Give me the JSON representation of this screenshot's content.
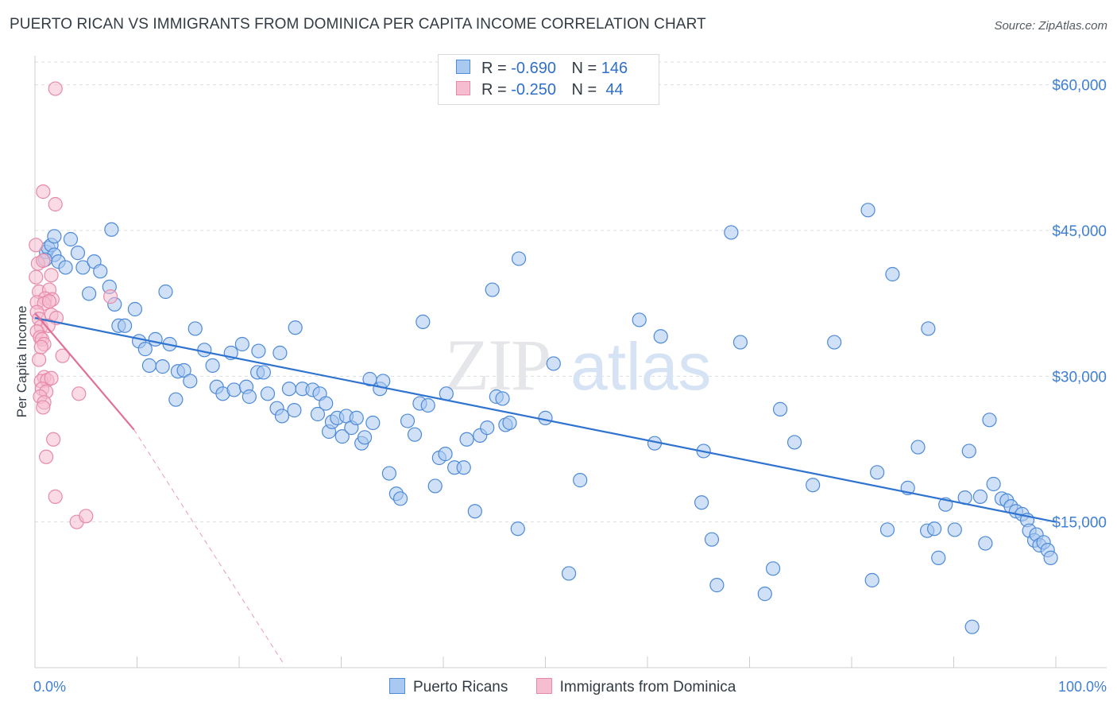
{
  "title": "PUERTO RICAN VS IMMIGRANTS FROM DOMINICA PER CAPITA INCOME CORRELATION CHART",
  "source": "Source: ZipAtlas.com",
  "watermark": {
    "part1": "ZIP",
    "part2": "atlas"
  },
  "colors": {
    "blue_fill": "#aac9f0",
    "blue_stroke": "#4d8ad8",
    "blue_line": "#2f73d0",
    "pink_fill": "#f6bcd0",
    "pink_stroke": "#e78aa8",
    "pink_line": "#e0709a",
    "grid": "#d9dde2",
    "axis_text": "#3f7fd4"
  },
  "legend": {
    "r_label": "R =",
    "n_label": "N =",
    "rows": [
      {
        "r": "-0.690",
        "n": "146"
      },
      {
        "r": "-0.250",
        "n": " 44"
      }
    ]
  },
  "bottom_legend": [
    "Puerto Ricans",
    "Immigrants from Dominica"
  ],
  "chart_data": {
    "type": "scatter",
    "title": "PUERTO RICAN VS IMMIGRANTS FROM DOMINICA PER CAPITA INCOME CORRELATION CHART",
    "xlabel": "",
    "ylabel": "Per Capita Income",
    "xlim": [
      0,
      100
    ],
    "ylim": [
      0,
      63000
    ],
    "x_tick_labels": [
      "0.0%",
      "100.0%"
    ],
    "y_ticks": [
      15000,
      30000,
      45000,
      60000
    ],
    "y_tick_labels": [
      "$15,000",
      "$30,000",
      "$45,000",
      "$60,000"
    ],
    "grid": true,
    "legend_position": "top-center",
    "series": [
      {
        "name": "Puerto Ricans",
        "trend": {
          "x": [
            0,
            100
          ],
          "y": [
            36000,
            15000
          ],
          "style": "solid"
        },
        "points": [
          [
            1.1,
            42800
          ],
          [
            1.3,
            43200
          ],
          [
            1.6,
            43500
          ],
          [
            1.9,
            42500
          ],
          [
            2.3,
            41800
          ],
          [
            1.0,
            42000
          ],
          [
            1.9,
            44400
          ],
          [
            3.5,
            44100
          ],
          [
            4.2,
            42700
          ],
          [
            4.7,
            41200
          ],
          [
            3.0,
            41200
          ],
          [
            5.8,
            41800
          ],
          [
            6.4,
            40800
          ],
          [
            5.3,
            38500
          ],
          [
            7.3,
            39200
          ],
          [
            7.8,
            37400
          ],
          [
            7.5,
            45100
          ],
          [
            8.2,
            35200
          ],
          [
            8.8,
            35200
          ],
          [
            9.8,
            36900
          ],
          [
            10.2,
            33600
          ],
          [
            10.8,
            32800
          ],
          [
            11.2,
            31100
          ],
          [
            11.8,
            33800
          ],
          [
            12.5,
            31000
          ],
          [
            13.2,
            33300
          ],
          [
            12.8,
            38700
          ],
          [
            14.0,
            30500
          ],
          [
            14.6,
            30600
          ],
          [
            13.8,
            27600
          ],
          [
            15.7,
            34900
          ],
          [
            15.2,
            29500
          ],
          [
            16.6,
            32700
          ],
          [
            17.8,
            28900
          ],
          [
            17.4,
            31100
          ],
          [
            18.4,
            28200
          ],
          [
            19.5,
            28600
          ],
          [
            19.2,
            32400
          ],
          [
            20.3,
            33300
          ],
          [
            20.7,
            28900
          ],
          [
            21.0,
            27900
          ],
          [
            21.9,
            32600
          ],
          [
            21.8,
            30400
          ],
          [
            22.4,
            30400
          ],
          [
            22.8,
            28200
          ],
          [
            23.7,
            26700
          ],
          [
            24.2,
            25900
          ],
          [
            24.0,
            32400
          ],
          [
            24.9,
            28700
          ],
          [
            25.4,
            26500
          ],
          [
            25.5,
            35000
          ],
          [
            26.2,
            28700
          ],
          [
            27.2,
            28600
          ],
          [
            27.7,
            26100
          ],
          [
            27.9,
            28200
          ],
          [
            28.5,
            27200
          ],
          [
            28.8,
            24300
          ],
          [
            29.1,
            25300
          ],
          [
            29.6,
            25700
          ],
          [
            30.1,
            23800
          ],
          [
            30.5,
            25900
          ],
          [
            31.0,
            24700
          ],
          [
            31.5,
            25700
          ],
          [
            32.0,
            23100
          ],
          [
            32.3,
            23700
          ],
          [
            32.8,
            29700
          ],
          [
            33.1,
            25200
          ],
          [
            33.8,
            28700
          ],
          [
            34.1,
            29500
          ],
          [
            34.7,
            20000
          ],
          [
            35.4,
            17900
          ],
          [
            35.8,
            17400
          ],
          [
            36.5,
            25400
          ],
          [
            37.2,
            24000
          ],
          [
            37.7,
            27200
          ],
          [
            38.0,
            35600
          ],
          [
            38.5,
            27000
          ],
          [
            39.2,
            18700
          ],
          [
            39.6,
            21600
          ],
          [
            40.2,
            22000
          ],
          [
            40.3,
            28200
          ],
          [
            41.1,
            20600
          ],
          [
            42.0,
            20600
          ],
          [
            42.3,
            23500
          ],
          [
            43.1,
            16100
          ],
          [
            43.6,
            23900
          ],
          [
            44.3,
            24700
          ],
          [
            44.8,
            38900
          ],
          [
            45.2,
            27900
          ],
          [
            45.8,
            27700
          ],
          [
            46.1,
            25000
          ],
          [
            46.5,
            25200
          ],
          [
            47.3,
            14300
          ],
          [
            47.4,
            42100
          ],
          [
            50.0,
            25700
          ],
          [
            50.8,
            31300
          ],
          [
            52.3,
            9700
          ],
          [
            53.4,
            19300
          ],
          [
            59.2,
            35800
          ],
          [
            60.7,
            23100
          ],
          [
            61.3,
            34100
          ],
          [
            65.3,
            17000
          ],
          [
            65.5,
            22300
          ],
          [
            66.3,
            13200
          ],
          [
            66.8,
            8500
          ],
          [
            68.2,
            44800
          ],
          [
            69.1,
            33500
          ],
          [
            71.5,
            7600
          ],
          [
            72.3,
            10200
          ],
          [
            73.0,
            26600
          ],
          [
            74.4,
            23200
          ],
          [
            76.2,
            18800
          ],
          [
            78.3,
            33500
          ],
          [
            81.6,
            47100
          ],
          [
            82.0,
            9000
          ],
          [
            82.5,
            20100
          ],
          [
            83.5,
            14200
          ],
          [
            84.0,
            40500
          ],
          [
            85.5,
            18500
          ],
          [
            86.5,
            22700
          ],
          [
            87.4,
            14100
          ],
          [
            87.5,
            34900
          ],
          [
            88.1,
            14300
          ],
          [
            88.5,
            11300
          ],
          [
            89.2,
            16800
          ],
          [
            90.1,
            14200
          ],
          [
            91.1,
            17500
          ],
          [
            91.5,
            22300
          ],
          [
            91.8,
            4200
          ],
          [
            92.6,
            17600
          ],
          [
            93.1,
            12800
          ],
          [
            93.5,
            25500
          ],
          [
            93.9,
            18900
          ],
          [
            94.7,
            17400
          ],
          [
            95.2,
            17200
          ],
          [
            95.6,
            16600
          ],
          [
            96.1,
            16100
          ],
          [
            96.7,
            15800
          ],
          [
            97.2,
            15200
          ],
          [
            97.4,
            14100
          ],
          [
            97.9,
            13100
          ],
          [
            98.1,
            13700
          ],
          [
            98.4,
            12600
          ],
          [
            98.8,
            12900
          ],
          [
            99.2,
            12100
          ],
          [
            99.5,
            11300
          ]
        ]
      },
      {
        "name": "Immigrants from Dominica",
        "trend": {
          "x": [
            0,
            9.7
          ],
          "y": [
            36500,
            24500
          ],
          "style": "solid",
          "extended_to": [
            24.3,
            500
          ],
          "extended_style": "dashed"
        },
        "points": [
          [
            2.0,
            59600
          ],
          [
            0.8,
            49000
          ],
          [
            2.0,
            47700
          ],
          [
            0.1,
            43500
          ],
          [
            0.3,
            41600
          ],
          [
            0.8,
            41900
          ],
          [
            0.1,
            40200
          ],
          [
            1.6,
            40400
          ],
          [
            0.4,
            38700
          ],
          [
            1.4,
            38900
          ],
          [
            1.0,
            38000
          ],
          [
            0.2,
            37600
          ],
          [
            1.7,
            37900
          ],
          [
            0.9,
            37500
          ],
          [
            0.2,
            36600
          ],
          [
            1.6,
            36300
          ],
          [
            0.4,
            35900
          ],
          [
            2.1,
            36000
          ],
          [
            0.6,
            35100
          ],
          [
            1.3,
            35200
          ],
          [
            0.2,
            34600
          ],
          [
            0.5,
            34000
          ],
          [
            0.7,
            33800
          ],
          [
            0.9,
            33300
          ],
          [
            2.7,
            32100
          ],
          [
            0.4,
            31700
          ],
          [
            0.9,
            29900
          ],
          [
            0.6,
            29500
          ],
          [
            1.2,
            29600
          ],
          [
            1.6,
            29800
          ],
          [
            0.7,
            28700
          ],
          [
            1.1,
            28400
          ],
          [
            0.5,
            27900
          ],
          [
            0.9,
            27300
          ],
          [
            0.8,
            26800
          ],
          [
            1.8,
            23500
          ],
          [
            1.1,
            21700
          ],
          [
            2.0,
            17600
          ],
          [
            4.1,
            15000
          ],
          [
            5.0,
            15600
          ],
          [
            7.4,
            38200
          ],
          [
            4.3,
            28200
          ],
          [
            0.6,
            33000
          ],
          [
            1.4,
            37700
          ]
        ]
      }
    ]
  }
}
